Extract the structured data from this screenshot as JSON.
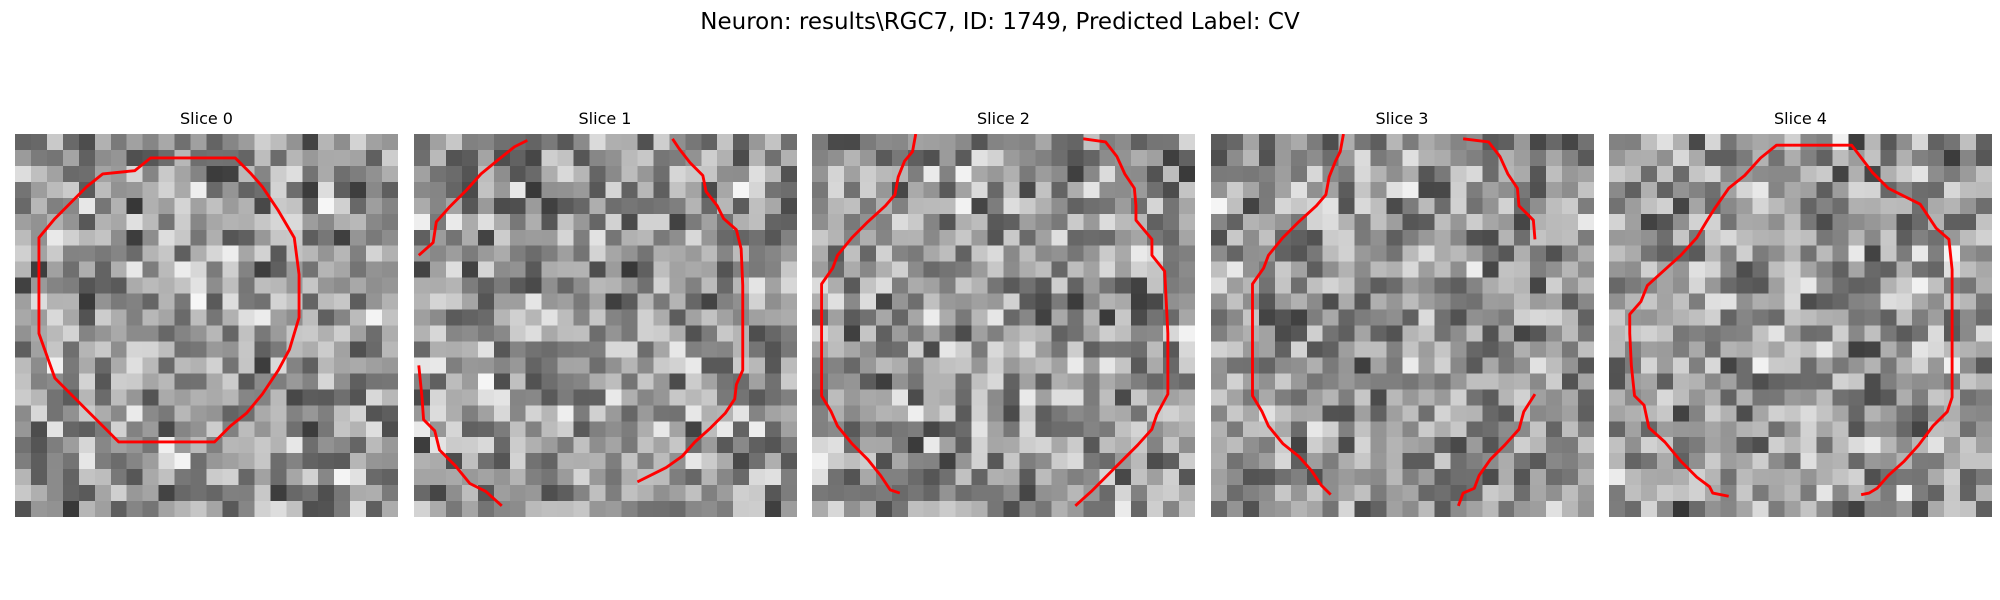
{
  "figure": {
    "suptitle": "Neuron: results\\RGC7, ID: 1749, Predicted Label: CV",
    "contour_color": "#ff0000",
    "colormap": "gray",
    "panels": [
      {
        "title": "Slice 0",
        "seed": 11,
        "contour": [
          [
            [
              10.5,
              1.5
            ],
            [
              13.8,
              1.5
            ],
            [
              14.8,
              2.5
            ],
            [
              15.5,
              3.3
            ],
            [
              16.5,
              4.8
            ],
            [
              17.5,
              6.5
            ],
            [
              17.8,
              8.8
            ],
            [
              17.8,
              11.5
            ],
            [
              17.2,
              13.5
            ],
            [
              16.5,
              14.8
            ],
            [
              15.5,
              16.3
            ],
            [
              14.5,
              17.5
            ],
            [
              13.5,
              18.3
            ],
            [
              12.5,
              19.3
            ],
            [
              9.5,
              19.3
            ],
            [
              6.5,
              19.3
            ],
            [
              5.5,
              18.3
            ],
            [
              4.5,
              17.3
            ],
            [
              3.5,
              16.3
            ],
            [
              2.5,
              15.3
            ],
            [
              1.5,
              12.5
            ],
            [
              1.5,
              8.5
            ],
            [
              1.5,
              6.5
            ],
            [
              2.5,
              5.3
            ],
            [
              3.5,
              4.3
            ],
            [
              4.5,
              3.3
            ],
            [
              5.5,
              2.5
            ],
            [
              7.5,
              2.3
            ],
            [
              8.5,
              1.5
            ],
            [
              10.5,
              1.5
            ]
          ]
        ]
      },
      {
        "title": "Slice 1",
        "seed": 23,
        "contour": [
          [
            [
              0.3,
              7.6
            ],
            [
              1.2,
              6.8
            ],
            [
              1.4,
              5.5
            ],
            [
              2.2,
              4.6
            ],
            [
              3.3,
              3.5
            ],
            [
              4.2,
              2.5
            ],
            [
              5.3,
              1.6
            ],
            [
              6.3,
              0.8
            ],
            [
              7.1,
              0.4
            ]
          ],
          [
            [
              16.2,
              0.3
            ],
            [
              16.6,
              0.9
            ],
            [
              17.3,
              1.8
            ],
            [
              18.1,
              2.6
            ],
            [
              18.3,
              3.6
            ],
            [
              19.0,
              4.5
            ],
            [
              19.4,
              5.3
            ],
            [
              20.2,
              6.0
            ],
            [
              20.5,
              7.2
            ],
            [
              20.6,
              9.5
            ],
            [
              20.6,
              12.5
            ],
            [
              20.6,
              14.8
            ],
            [
              20.2,
              15.7
            ],
            [
              20.1,
              16.6
            ],
            [
              19.5,
              17.5
            ],
            [
              18.6,
              18.4
            ],
            [
              17.6,
              19.3
            ],
            [
              16.8,
              20.2
            ],
            [
              15.8,
              20.9
            ],
            [
              15.0,
              21.3
            ],
            [
              14.0,
              21.8
            ]
          ],
          [
            [
              5.5,
              23.3
            ],
            [
              4.5,
              22.4
            ],
            [
              3.5,
              21.9
            ],
            [
              2.6,
              20.8
            ],
            [
              1.6,
              19.8
            ],
            [
              1.3,
              18.6
            ],
            [
              0.6,
              17.9
            ],
            [
              0.5,
              16.5
            ],
            [
              0.3,
              14.5
            ]
          ]
        ]
      },
      {
        "title": "Slice 2",
        "seed": 37,
        "contour": [
          [
            [
              6.5,
              0.0
            ],
            [
              6.3,
              1.1
            ],
            [
              5.8,
              1.7
            ],
            [
              5.4,
              2.7
            ],
            [
              5.2,
              3.8
            ],
            [
              4.6,
              4.5
            ],
            [
              3.5,
              5.5
            ],
            [
              2.5,
              6.5
            ],
            [
              1.6,
              7.6
            ],
            [
              1.3,
              8.4
            ],
            [
              0.6,
              9.4
            ],
            [
              0.6,
              12.5
            ],
            [
              0.6,
              15.5
            ],
            [
              0.6,
              16.4
            ],
            [
              1.2,
              17.4
            ],
            [
              1.6,
              18.3
            ],
            [
              2.5,
              19.4
            ],
            [
              3.5,
              20.4
            ],
            [
              4.3,
              21.4
            ],
            [
              4.9,
              22.3
            ],
            [
              5.5,
              22.5
            ]
          ],
          [
            [
              17.0,
              0.3
            ],
            [
              18.4,
              0.5
            ],
            [
              19.1,
              1.4
            ],
            [
              19.6,
              2.5
            ],
            [
              20.2,
              3.4
            ],
            [
              20.3,
              4.5
            ],
            [
              20.3,
              5.4
            ],
            [
              21.3,
              6.6
            ],
            [
              21.3,
              7.6
            ],
            [
              22.1,
              8.6
            ],
            [
              22.3,
              12.5
            ],
            [
              22.3,
              16.3
            ],
            [
              21.6,
              17.6
            ],
            [
              21.3,
              18.5
            ],
            [
              20.4,
              19.5
            ],
            [
              19.5,
              20.4
            ],
            [
              18.5,
              21.4
            ],
            [
              17.5,
              22.4
            ],
            [
              16.5,
              23.3
            ]
          ]
        ]
      },
      {
        "title": "Slice 3",
        "seed": 53,
        "contour": [
          [
            [
              8.3,
              0.0
            ],
            [
              8.1,
              1.1
            ],
            [
              7.8,
              1.7
            ],
            [
              7.4,
              2.7
            ],
            [
              7.2,
              3.8
            ],
            [
              6.6,
              4.5
            ],
            [
              5.5,
              5.5
            ],
            [
              4.5,
              6.5
            ],
            [
              3.6,
              7.6
            ],
            [
              3.3,
              8.4
            ],
            [
              2.6,
              9.4
            ],
            [
              2.6,
              12.5
            ],
            [
              2.6,
              15.5
            ],
            [
              2.6,
              16.4
            ],
            [
              3.2,
              17.4
            ],
            [
              3.6,
              18.3
            ],
            [
              4.5,
              19.4
            ],
            [
              5.5,
              20.2
            ],
            [
              6.3,
              21.1
            ],
            [
              6.9,
              22.0
            ],
            [
              7.5,
              22.6
            ]
          ],
          [
            [
              15.8,
              0.3
            ],
            [
              17.4,
              0.5
            ],
            [
              18.1,
              1.4
            ],
            [
              18.6,
              2.5
            ],
            [
              19.2,
              3.4
            ],
            [
              19.3,
              4.5
            ],
            [
              20.2,
              5.4
            ],
            [
              20.3,
              6.6
            ]
          ],
          [
            [
              20.3,
              16.3
            ],
            [
              19.6,
              17.4
            ],
            [
              19.3,
              18.5
            ],
            [
              18.4,
              19.5
            ],
            [
              17.5,
              20.4
            ],
            [
              16.8,
              21.4
            ],
            [
              16.5,
              22.2
            ],
            [
              15.8,
              22.5
            ],
            [
              15.5,
              23.3
            ]
          ]
        ]
      },
      {
        "title": "Slice 4",
        "seed": 71,
        "contour": [
          [
            [
              11.5,
              0.7
            ],
            [
              13.8,
              0.7
            ],
            [
              15.2,
              0.7
            ],
            [
              16.5,
              2.4
            ],
            [
              17.5,
              3.4
            ],
            [
              19.5,
              4.4
            ],
            [
              20.5,
              5.9
            ],
            [
              21.3,
              6.6
            ],
            [
              21.5,
              8.5
            ],
            [
              21.5,
              12.5
            ],
            [
              21.5,
              16.5
            ],
            [
              21.2,
              17.4
            ],
            [
              20.3,
              18.3
            ],
            [
              19.4,
              19.5
            ],
            [
              18.5,
              20.5
            ],
            [
              17.5,
              21.4
            ],
            [
              16.8,
              22.2
            ],
            [
              16.3,
              22.5
            ],
            [
              15.8,
              22.6
            ]
          ],
          [
            [
              7.5,
              22.7
            ],
            [
              6.5,
              22.5
            ],
            [
              6.3,
              22.1
            ],
            [
              5.5,
              21.5
            ],
            [
              4.5,
              20.5
            ],
            [
              3.5,
              19.3
            ],
            [
              2.5,
              18.4
            ],
            [
              2.2,
              17.0
            ],
            [
              1.6,
              16.4
            ],
            [
              1.4,
              14.5
            ],
            [
              1.3,
              12.5
            ],
            [
              1.3,
              11.3
            ],
            [
              2.0,
              10.5
            ],
            [
              2.4,
              9.5
            ],
            [
              3.5,
              8.5
            ],
            [
              4.5,
              7.6
            ],
            [
              5.5,
              6.5
            ],
            [
              6.1,
              5.5
            ],
            [
              6.6,
              4.7
            ],
            [
              7.5,
              3.4
            ],
            [
              8.5,
              2.6
            ],
            [
              9.5,
              1.5
            ],
            [
              10.5,
              0.7
            ],
            [
              11.5,
              0.7
            ]
          ]
        ]
      }
    ]
  }
}
